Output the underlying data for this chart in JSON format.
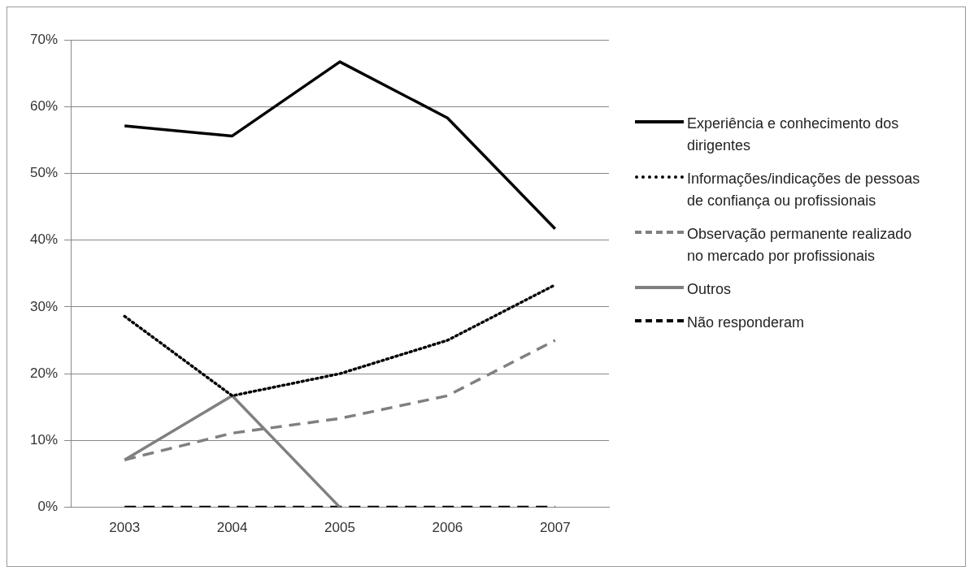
{
  "chart_data": {
    "type": "line",
    "categories": [
      "2003",
      "2004",
      "2005",
      "2006",
      "2007"
    ],
    "ylim": [
      0,
      0.7
    ],
    "yticks": [
      {
        "value": 0,
        "label": "0%"
      },
      {
        "value": 0.1,
        "label": "10%"
      },
      {
        "value": 0.2,
        "label": "20%"
      },
      {
        "value": 0.3,
        "label": "30%"
      },
      {
        "value": 0.4,
        "label": "40%"
      },
      {
        "value": 0.5,
        "label": "50%"
      },
      {
        "value": 0.6,
        "label": "60%"
      },
      {
        "value": 0.7,
        "label": "70%"
      }
    ],
    "grid": "y",
    "legend": "right",
    "marker": "none",
    "series": [
      {
        "name": "Experiência e conhecimento dos dirigentes",
        "color": "#000000",
        "line_style": "solid",
        "values": [
          0.571,
          0.556,
          0.667,
          0.583,
          0.417
        ]
      },
      {
        "name": "Informações/indicações de pessoas de confiança ou profissionais",
        "color": "#000000",
        "line_style": "dotted",
        "values": [
          0.286,
          0.167,
          0.2,
          0.25,
          0.333
        ]
      },
      {
        "name": "Observação permanente realizado no mercado por profissionais",
        "color": "#808080",
        "line_style": "dashed",
        "values": [
          0.071,
          0.111,
          0.133,
          0.167,
          0.25
        ]
      },
      {
        "name": "Outros",
        "color": "#808080",
        "line_style": "solid",
        "values": [
          0.071,
          0.167,
          0,
          null,
          null
        ]
      },
      {
        "name": "Não responderam",
        "color": "#000000",
        "line_style": "dashed",
        "values": [
          0,
          0,
          0,
          0,
          0
        ]
      }
    ]
  }
}
